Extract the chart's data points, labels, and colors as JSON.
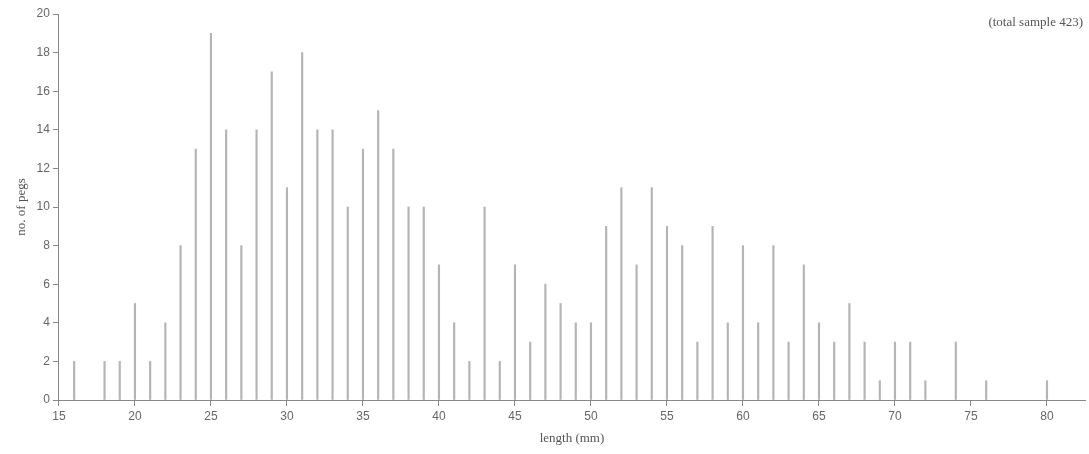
{
  "chart_data": {
    "type": "bar",
    "xlabel": "length (mm)",
    "ylabel": "no. of pegs",
    "annotations": [
      "(total sample 423)"
    ],
    "x": [
      16,
      18,
      19,
      20,
      21,
      22,
      23,
      24,
      25,
      26,
      27,
      28,
      29,
      30,
      31,
      32,
      33,
      34,
      35,
      36,
      37,
      38,
      39,
      40,
      41,
      42,
      43,
      44,
      45,
      46,
      47,
      48,
      49,
      50,
      51,
      52,
      53,
      54,
      55,
      56,
      57,
      58,
      59,
      60,
      61,
      62,
      63,
      64,
      65,
      66,
      67,
      68,
      69,
      70,
      71,
      72,
      74,
      76,
      80
    ],
    "values": [
      2,
      2,
      2,
      5,
      2,
      4,
      8,
      13,
      19,
      14,
      8,
      14,
      17,
      11,
      18,
      14,
      14,
      10,
      13,
      15,
      13,
      10,
      10,
      7,
      4,
      2,
      10,
      2,
      7,
      3,
      6,
      5,
      4,
      4,
      9,
      11,
      7,
      11,
      9,
      8,
      3,
      9,
      4,
      8,
      4,
      8,
      3,
      7,
      4,
      3,
      5,
      3,
      1,
      3,
      3,
      1,
      3,
      1,
      1
    ],
    "color": "#b4b4b4",
    "xlim": [
      15,
      82.5
    ],
    "xticks": [
      15,
      20,
      25,
      30,
      35,
      40,
      45,
      50,
      55,
      60,
      65,
      70,
      75,
      80
    ],
    "ylim": [
      0,
      20
    ],
    "yticks": [
      0,
      2,
      4,
      6,
      8,
      10,
      12,
      14,
      16,
      18,
      20
    ],
    "grid": false,
    "legend": false
  }
}
